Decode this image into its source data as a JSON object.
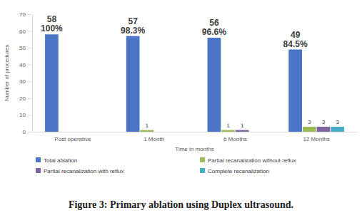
{
  "chart_data": {
    "type": "bar",
    "title": "Figure 3: Primary ablation using Duplex ultrasound.",
    "x_label": "Time in months",
    "y_label": "Number of procedures",
    "categories": [
      "Post operative",
      "1 Month",
      "6 Months",
      "12 Months"
    ],
    "series": [
      {
        "name": "Total ablation",
        "color": "#4a74c4",
        "values": [
          58,
          57,
          56,
          49
        ],
        "percent_labels": [
          "100%",
          "98.3%",
          "96.6%",
          "84.5%"
        ]
      },
      {
        "name": "Partial recanalization without reflux",
        "color": "#9bbb59",
        "values": [
          null,
          1,
          1,
          3
        ]
      },
      {
        "name": "Partial recanalization with reflux",
        "color": "#8064a2",
        "values": [
          null,
          null,
          1,
          3
        ]
      },
      {
        "name": "Complete recanalization",
        "color": "#4bacc6",
        "values": [
          null,
          null,
          null,
          3
        ]
      }
    ],
    "ylim": [
      0,
      70
    ],
    "yticks": [
      0,
      10,
      20,
      30,
      40,
      50,
      60,
      70
    ],
    "grid": false,
    "legend": "bottom",
    "data_labels": true
  }
}
